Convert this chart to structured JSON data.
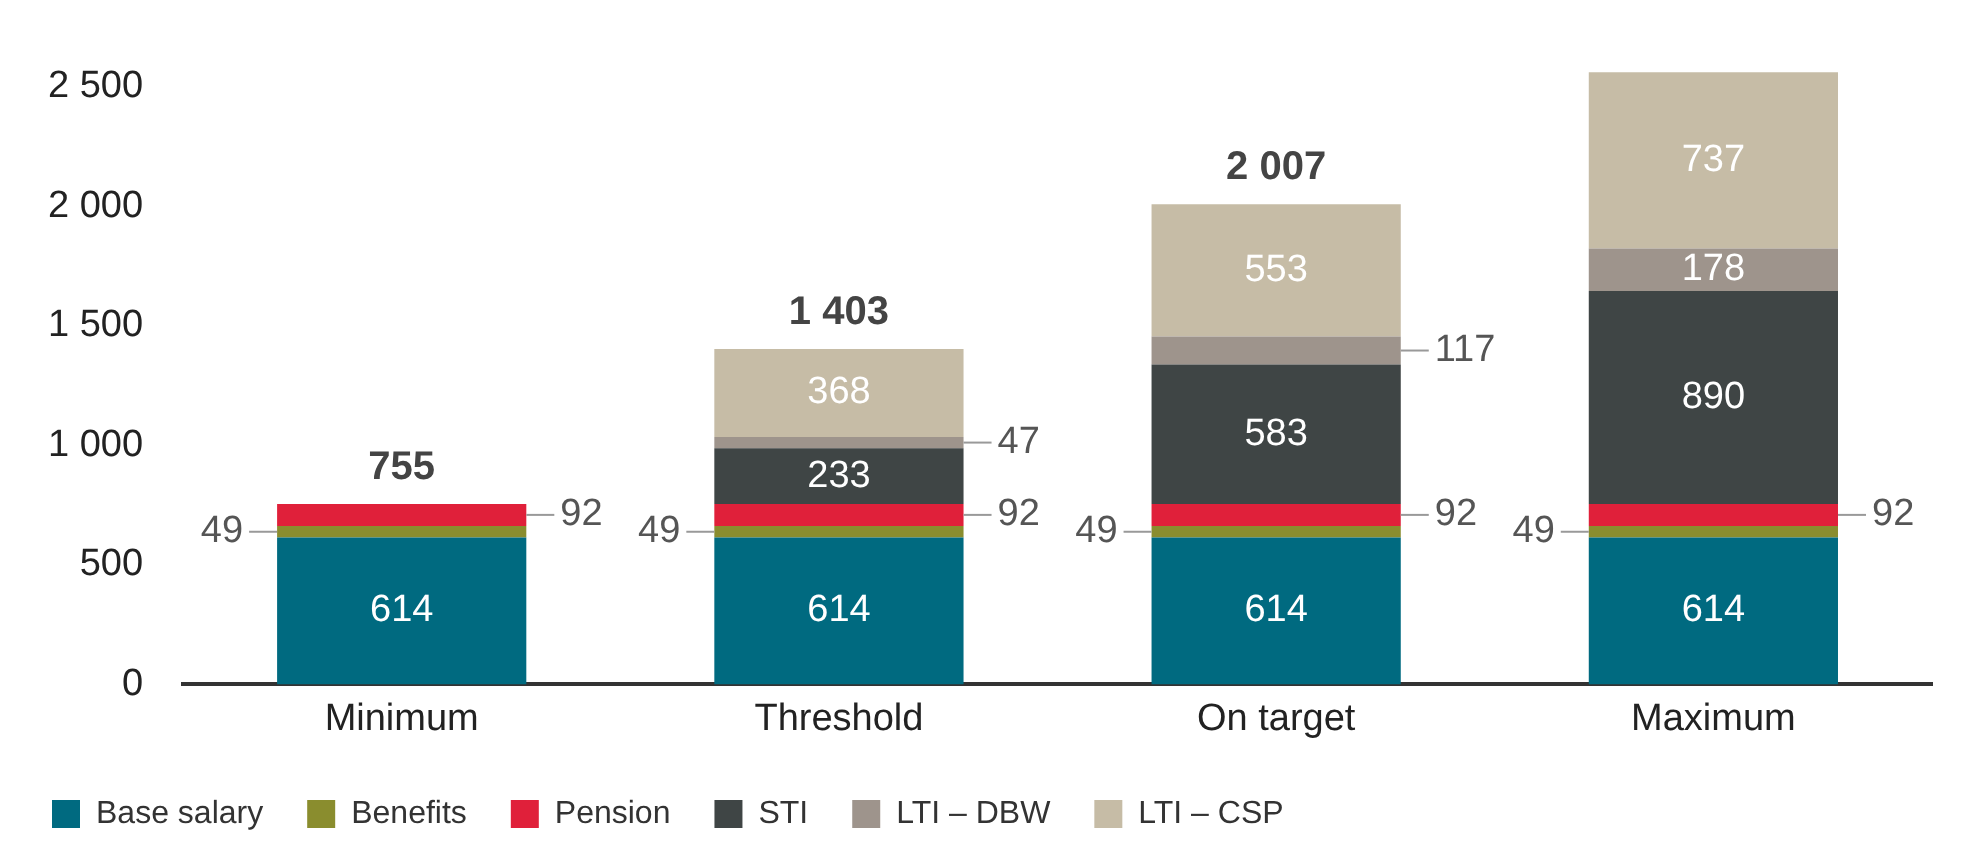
{
  "chart_data": {
    "type": "bar",
    "stacked": true,
    "categories": [
      "Minimum",
      "Threshold",
      "On target",
      "Maximum"
    ],
    "series": [
      {
        "name": "Base salary",
        "color": "#006a80",
        "values": [
          614,
          614,
          614,
          614
        ]
      },
      {
        "name": "Benefits",
        "color": "#8a8d2e",
        "values": [
          49,
          49,
          49,
          49
        ]
      },
      {
        "name": "Pension",
        "color": "#e0203a",
        "values": [
          92,
          92,
          92,
          92
        ]
      },
      {
        "name": "STI",
        "color": "#3f4545",
        "values": [
          null,
          233,
          583,
          890
        ]
      },
      {
        "name": "LTI – DBW",
        "color": "#9e948c",
        "values": [
          null,
          47,
          117,
          178
        ]
      },
      {
        "name": "LTI – CSP",
        "color": "#c6bca6",
        "values": [
          null,
          368,
          553,
          737
        ]
      }
    ],
    "data_labels": true,
    "totals": [
      "755",
      "1 403",
      "2 007",
      null
    ],
    "ylim": [
      0,
      2600
    ],
    "yticks": [
      0,
      {
        "value": 500,
        "label": "500"
      },
      {
        "value": 1000,
        "label": "1 000"
      },
      {
        "value": 1500,
        "label": "1 500"
      },
      {
        "value": 2000,
        "label": "2 000"
      },
      {
        "value": 2500,
        "label": "2 500"
      }
    ],
    "grid": false,
    "legend": "bottom"
  }
}
